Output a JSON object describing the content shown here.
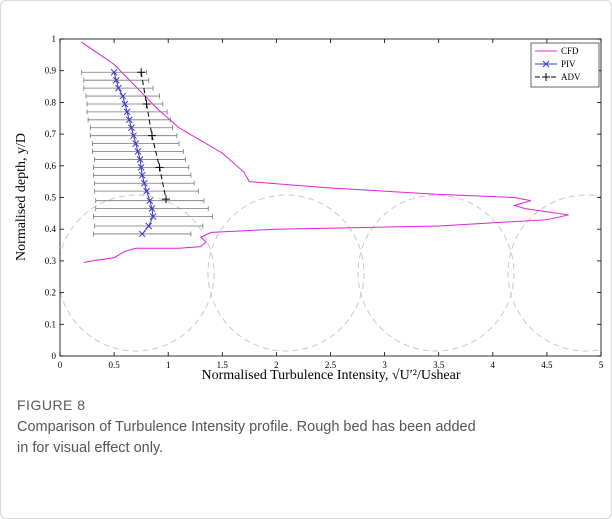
{
  "chart_data": {
    "type": "line",
    "xlabel": "Normalised Turbulence Intensity, √U′²/Ushear",
    "ylabel": "Normalised depth, y/D",
    "xlim": [
      0,
      5
    ],
    "xticks": [
      0,
      0.5,
      1,
      1.5,
      2,
      2.5,
      3,
      3.5,
      4,
      4.5,
      5
    ],
    "ylim": [
      0,
      1
    ],
    "yticks": [
      0,
      0.1,
      0.2,
      0.3,
      0.4,
      0.5,
      0.6,
      0.7,
      0.8,
      0.9,
      1
    ],
    "legend": "upper right",
    "series": [
      {
        "name": "CFD",
        "color": "#e020e0",
        "style": "solid",
        "marker": "none",
        "x": [
          0.2,
          0.5,
          0.7,
          0.9,
          1.1,
          1.3,
          1.5,
          1.7,
          1.75,
          2.5,
          3.5,
          4.2,
          4.35,
          4.2,
          4.3,
          4.5,
          4.7,
          4.5,
          3.5,
          2.0,
          1.4,
          1.3,
          1.35,
          1.3,
          1.1,
          0.7,
          0.6,
          0.5,
          0.3,
          0.22
        ],
        "y": [
          0.99,
          0.92,
          0.85,
          0.78,
          0.72,
          0.68,
          0.64,
          0.58,
          0.55,
          0.53,
          0.51,
          0.5,
          0.49,
          0.475,
          0.465,
          0.455,
          0.445,
          0.43,
          0.41,
          0.4,
          0.39,
          0.375,
          0.36,
          0.345,
          0.34,
          0.34,
          0.33,
          0.31,
          0.3,
          0.295
        ]
      },
      {
        "name": "PIV",
        "color": "#3a3ad0",
        "style": "solid",
        "marker": "x",
        "x": [
          0.5,
          0.52,
          0.54,
          0.58,
          0.6,
          0.62,
          0.64,
          0.66,
          0.68,
          0.7,
          0.72,
          0.74,
          0.75,
          0.76,
          0.78,
          0.8,
          0.83,
          0.85,
          0.86,
          0.82,
          0.76
        ],
        "y": [
          0.895,
          0.87,
          0.845,
          0.82,
          0.795,
          0.77,
          0.745,
          0.72,
          0.695,
          0.67,
          0.645,
          0.62,
          0.595,
          0.57,
          0.545,
          0.52,
          0.49,
          0.465,
          0.44,
          0.41,
          0.385
        ],
        "xerr": [
          0.3,
          0.3,
          0.32,
          0.34,
          0.35,
          0.37,
          0.38,
          0.38,
          0.4,
          0.4,
          0.42,
          0.42,
          0.44,
          0.45,
          0.46,
          0.48,
          0.5,
          0.52,
          0.55,
          0.5,
          0.45
        ]
      },
      {
        "name": "ADV",
        "color": "#000000",
        "style": "dashed",
        "marker": "+",
        "x": [
          0.75,
          0.8,
          0.85,
          0.92,
          0.98
        ],
        "y": [
          0.895,
          0.795,
          0.695,
          0.595,
          0.495
        ]
      }
    ]
  },
  "caption": {
    "label": "FIGURE 8",
    "text": "Comparison of Turbulence Intensity profile. Rough bed has been added in for visual effect only."
  }
}
